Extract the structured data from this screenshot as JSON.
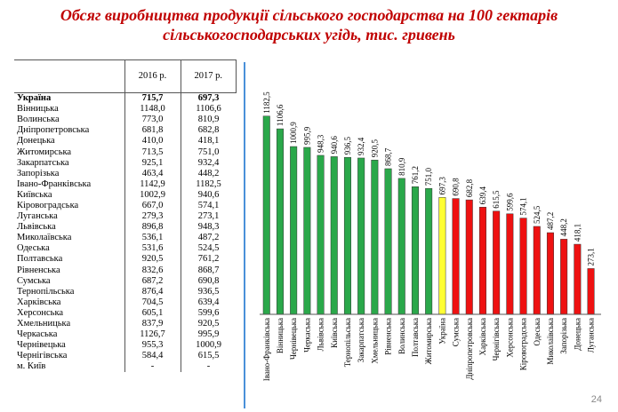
{
  "title": {
    "line1": "Обсяг виробництва продукції сільського господарства на 100 гектарів",
    "line2": "сільськогосподарських угідь, тис. гривень"
  },
  "table": {
    "headers": [
      "",
      "2016 р.",
      "2017 р."
    ],
    "rows": [
      {
        "region": "Україна",
        "v2016": "715,7",
        "v2017": "697,3",
        "bold": true
      },
      {
        "region": "Вінницька",
        "v2016": "1148,0",
        "v2017": "1106,6"
      },
      {
        "region": "Волинська",
        "v2016": "773,0",
        "v2017": "810,9"
      },
      {
        "region": "Дніпропетровська",
        "v2016": "681,8",
        "v2017": "682,8"
      },
      {
        "region": "Донецька",
        "v2016": "410,0",
        "v2017": "418,1"
      },
      {
        "region": "Житомирська",
        "v2016": "713,5",
        "v2017": "751,0"
      },
      {
        "region": "Закарпатська",
        "v2016": "925,1",
        "v2017": "932,4"
      },
      {
        "region": "Запорізька",
        "v2016": "463,4",
        "v2017": "448,2"
      },
      {
        "region": "Івано-Франківська",
        "v2016": "1142,9",
        "v2017": "1182,5"
      },
      {
        "region": "Київська",
        "v2016": "1002,9",
        "v2017": "940,6"
      },
      {
        "region": "Кіровоградська",
        "v2016": "667,0",
        "v2017": "574,1"
      },
      {
        "region": "Луганська",
        "v2016": "279,3",
        "v2017": "273,1"
      },
      {
        "region": "Львівська",
        "v2016": "896,8",
        "v2017": "948,3"
      },
      {
        "region": "Миколаївська",
        "v2016": "536,1",
        "v2017": "487,2"
      },
      {
        "region": "Одеська",
        "v2016": "531,6",
        "v2017": "524,5"
      },
      {
        "region": "Полтавська",
        "v2016": "920,5",
        "v2017": "761,2"
      },
      {
        "region": "Рівненська",
        "v2016": "832,6",
        "v2017": "868,7"
      },
      {
        "region": "Сумська",
        "v2016": "687,2",
        "v2017": "690,8"
      },
      {
        "region": "Тернопільська",
        "v2016": "876,4",
        "v2017": "936,5"
      },
      {
        "region": "Харківська",
        "v2016": "704,5",
        "v2017": "639,4"
      },
      {
        "region": "Херсонська",
        "v2016": "605,1",
        "v2017": "599,6"
      },
      {
        "region": "Хмельницька",
        "v2016": "837,9",
        "v2017": "920,5"
      },
      {
        "region": "Черкаська",
        "v2016": "1126,7",
        "v2017": "995,9"
      },
      {
        "region": "Чернівецька",
        "v2016": "955,3",
        "v2017": "1000,9"
      },
      {
        "region": "Чернігівська",
        "v2016": "584,4",
        "v2017": "615,5"
      },
      {
        "region": "м. Київ",
        "v2016": "-",
        "v2017": "-"
      }
    ]
  },
  "chart_data": {
    "type": "bar",
    "title": "",
    "xlabel": "",
    "ylabel": "",
    "ylim": [
      0,
      1250
    ],
    "grid": false,
    "categories": [
      "Івано-Франківська",
      "Вінницька",
      "Чернівецька",
      "Черкаська",
      "Львівська",
      "Київська",
      "Тернопільська",
      "Закарпатська",
      "Хмельницька",
      "Рівненська",
      "Волинська",
      "Полтавська",
      "Житомирська",
      "Україна",
      "Сумська",
      "Дніпропетровська",
      "Харківська",
      "Чернігівська",
      "Херсонська",
      "Кіровоградська",
      "Одеська",
      "Миколаївська",
      "Запорізька",
      "Донецька",
      "Луганська"
    ],
    "values": [
      1182.5,
      1106.6,
      1000.9,
      995.9,
      948.3,
      940.6,
      936.5,
      932.4,
      920.5,
      868.7,
      810.9,
      761.2,
      751.0,
      697.3,
      690.8,
      682.8,
      639.4,
      615.5,
      599.6,
      574.1,
      524.5,
      487.2,
      448.2,
      418.1,
      273.1
    ],
    "value_labels": [
      "1182,5",
      "1106,6",
      "1000,9",
      "995,9",
      "948,3",
      "940,6",
      "936,5",
      "932,4",
      "920,5",
      "868,7",
      "810,9",
      "761,2",
      "751,0",
      "697,3",
      "690,8",
      "682,8",
      "639,4",
      "615,5",
      "599,6",
      "574,1",
      "524,5",
      "487,2",
      "448,2",
      "418,1",
      "273,1"
    ],
    "colors": {
      "above": "#2aa84a",
      "ukraine": "#ffff33",
      "below": "#ee1111",
      "axis": "#555555"
    }
  },
  "page_number": "24"
}
